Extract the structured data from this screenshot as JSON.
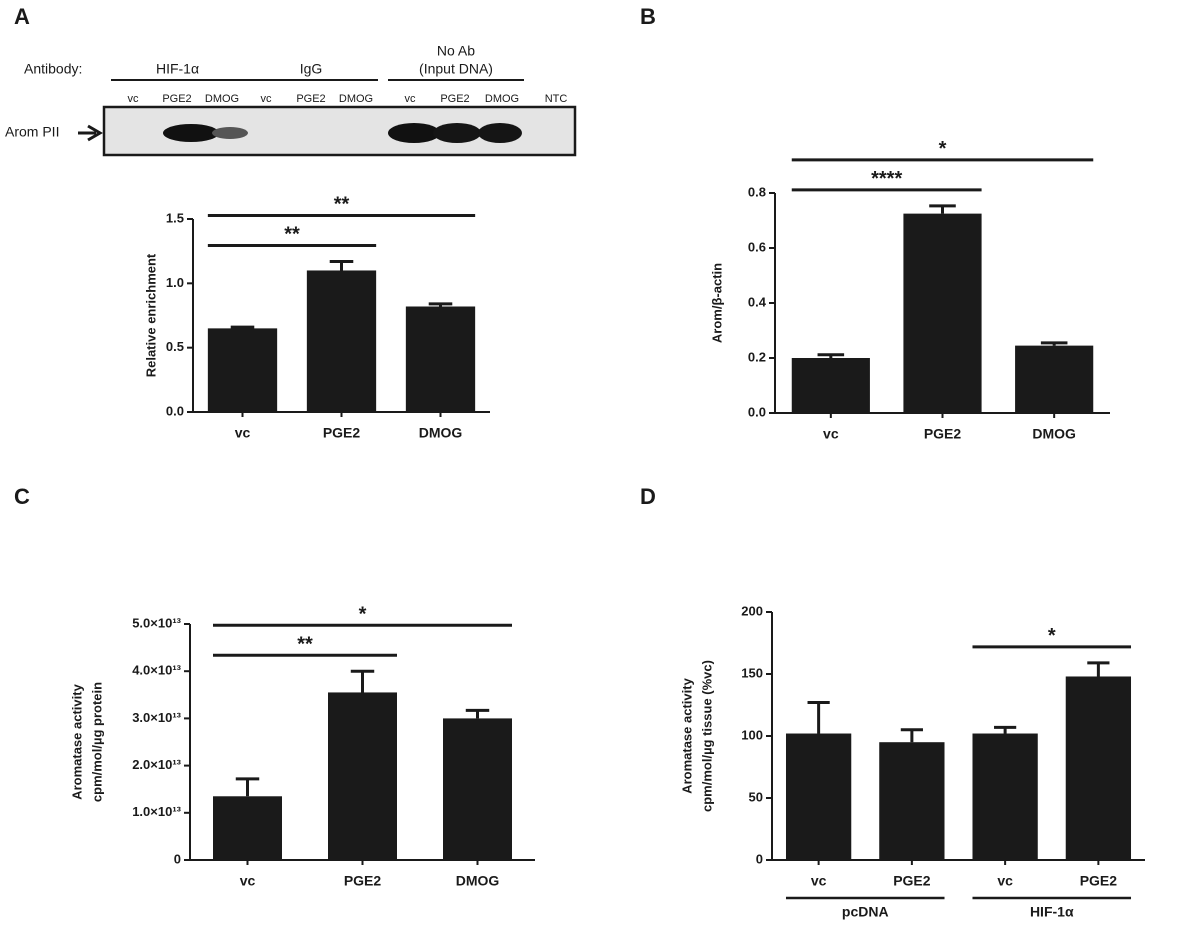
{
  "panel_labels": [
    "A",
    "B",
    "C",
    "D"
  ],
  "gel": {
    "antibody_label": "Antibody:",
    "groups": [
      {
        "name": [
          "HIF-1α"
        ],
        "lanes": [
          "vc",
          "PGE2",
          "DMOG"
        ]
      },
      {
        "name": [
          "IgG"
        ],
        "lanes": [
          "vc",
          "PGE2",
          "DMOG"
        ]
      },
      {
        "name": [
          "No Ab",
          "(Input DNA)"
        ],
        "lanes": [
          "vc",
          "PGE2",
          "DMOG"
        ]
      }
    ],
    "extra_lane": "NTC",
    "band_label": "Arom PII"
  },
  "chart_data": [
    {
      "type": "bar",
      "ylabel": [
        "Relative enrichment"
      ],
      "categories": [
        "vc",
        "PGE2",
        "DMOG"
      ],
      "values": [
        0.65,
        1.1,
        0.82
      ],
      "errors": [
        0.01,
        0.07,
        0.02
      ],
      "color": "#1a1a1a",
      "ylim": [
        0,
        1.5
      ],
      "yticks": [
        {
          "value": 0,
          "label": "0.0"
        },
        0.5,
        {
          "value": 1,
          "label": "1.0"
        },
        1.5
      ],
      "significance": [
        {
          "label": "**",
          "from": 0,
          "to": 1
        },
        {
          "label": "**",
          "from": 0,
          "to": 2
        }
      ]
    },
    {
      "type": "bar",
      "ylabel": [
        "Arom/β-actin"
      ],
      "categories": [
        "vc",
        "PGE2",
        "DMOG"
      ],
      "values": [
        0.2,
        0.725,
        0.245
      ],
      "errors": [
        0.012,
        0.028,
        0.01
      ],
      "color": "#1a1a1a",
      "ylim": [
        0,
        0.8
      ],
      "yticks": [
        {
          "value": 0,
          "label": "0.0"
        },
        0.2,
        0.4,
        0.6,
        0.8
      ],
      "significance": [
        {
          "label": "****",
          "from": 0,
          "to": 1
        },
        {
          "label": "*",
          "from": 0,
          "to": 2
        }
      ]
    },
    {
      "type": "bar",
      "ylabel": [
        "Aromatase activity",
        "cpm/mol/µg protein"
      ],
      "categories": [
        "vc",
        "PGE2",
        "DMOG"
      ],
      "values": [
        13500000000000,
        35500000000000,
        30000000000000
      ],
      "errors": [
        3700000000000,
        4500000000000,
        1700000000000
      ],
      "color": "#1a1a1a",
      "ylim": [
        0,
        50000000000000
      ],
      "yticks": [
        0,
        {
          "value": 10000000000000,
          "label": "1.0×10¹³"
        },
        {
          "value": 20000000000000,
          "label": "2.0×10¹³"
        },
        {
          "value": 30000000000000,
          "label": "3.0×10¹³"
        },
        {
          "value": 40000000000000,
          "label": "4.0×10¹³"
        },
        {
          "value": 50000000000000,
          "label": "5.0×10¹³"
        }
      ],
      "significance": [
        {
          "label": "**",
          "from": 0,
          "to": 1
        },
        {
          "label": "*",
          "from": 0,
          "to": 2
        }
      ]
    },
    {
      "type": "bar",
      "ylabel": [
        "Aromatase activity",
        "cpm/mol/µg tissue (%vc)"
      ],
      "categories": [
        "vc",
        "PGE2",
        "vc",
        "PGE2"
      ],
      "groups": [
        "pcDNA",
        "HIF-1α"
      ],
      "values": [
        102,
        95,
        102,
        148
      ],
      "errors": [
        25,
        10,
        5,
        11
      ],
      "color": "#1a1a1a",
      "ylim": [
        0,
        200
      ],
      "yticks": [
        0,
        50,
        100,
        150,
        200
      ],
      "significance": [
        {
          "label": "*",
          "from": 2,
          "to": 3
        }
      ]
    }
  ]
}
